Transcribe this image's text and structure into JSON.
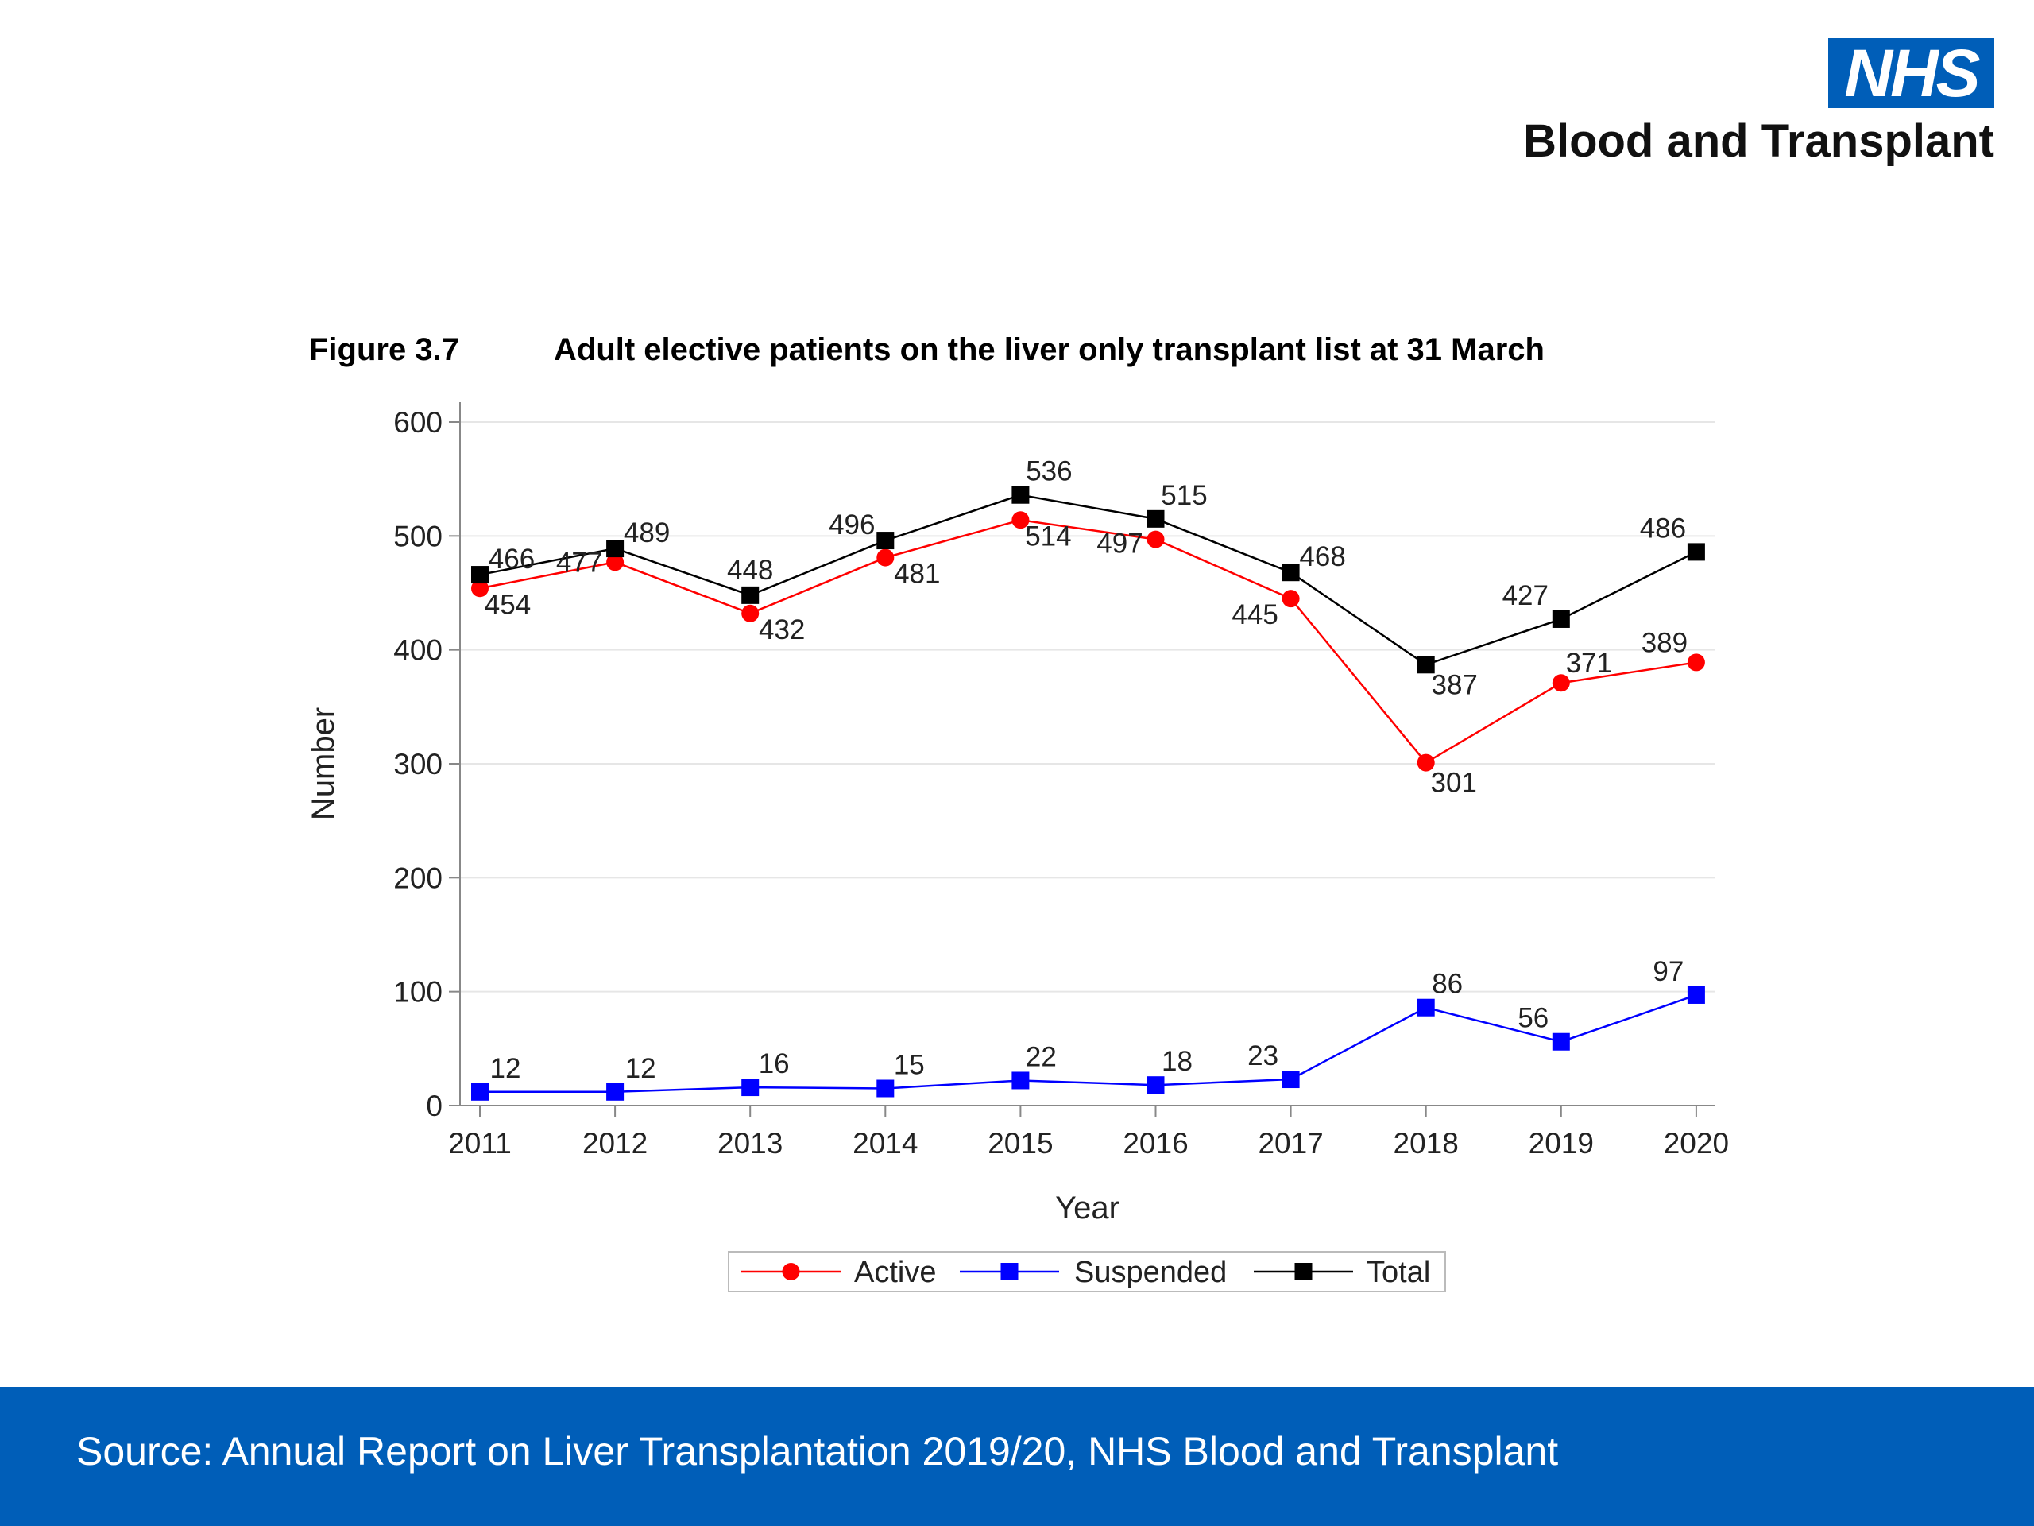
{
  "logo": {
    "nhs_text": "NHS",
    "org_name": "Blood and Transplant",
    "brand_color": "#005eb8"
  },
  "figure": {
    "number": "Figure 3.7",
    "title": "Adult elective patients on the liver only transplant list at 31 March"
  },
  "footer": {
    "source": "Source: Annual Report on Liver Transplantation 2019/20, NHS Blood and Transplant",
    "background_color": "#005eb8"
  },
  "chart_data": {
    "type": "line",
    "xlabel": "Year",
    "ylabel": "Number",
    "categories": [
      "2011",
      "2012",
      "2013",
      "2014",
      "2015",
      "2016",
      "2017",
      "2018",
      "2019",
      "2020"
    ],
    "ylim": [
      0,
      600
    ],
    "yticks": [
      0,
      100,
      200,
      300,
      400,
      500,
      600
    ],
    "grid": true,
    "legend_position": "bottom-center",
    "series": [
      {
        "name": "Active",
        "color": "#ff0000",
        "marker": "circle",
        "values": [
          454,
          477,
          432,
          481,
          514,
          497,
          445,
          301,
          371,
          389
        ]
      },
      {
        "name": "Suspended",
        "color": "#0000ff",
        "marker": "square",
        "values": [
          12,
          12,
          16,
          15,
          22,
          18,
          23,
          86,
          56,
          97
        ]
      },
      {
        "name": "Total",
        "color": "#000000",
        "marker": "square",
        "values": [
          466,
          489,
          448,
          496,
          536,
          515,
          468,
          387,
          427,
          486
        ]
      }
    ]
  }
}
